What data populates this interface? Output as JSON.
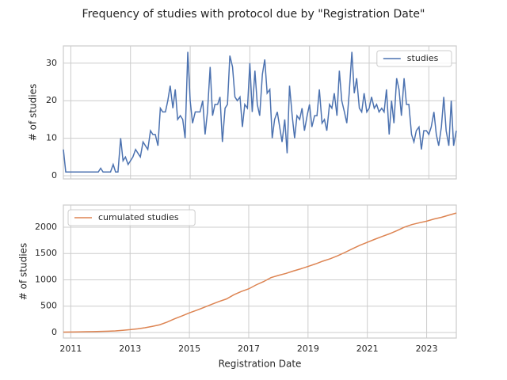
{
  "title": "Frequency of studies with protocol due by \"Registration Date\"",
  "chart_data": [
    {
      "type": "line",
      "ylabel": "# of studies",
      "grid": true,
      "legend": "upper right",
      "xlim": [
        2010.75,
        2023.92
      ],
      "ylim": [
        -0.85,
        34.6
      ],
      "yticks": [
        0,
        10,
        20,
        30
      ],
      "x": [
        2010.75,
        2010.83,
        2010.92,
        2011,
        2011.08,
        2011.17,
        2011.25,
        2011.33,
        2011.42,
        2011.5,
        2011.58,
        2011.67,
        2011.75,
        2011.83,
        2011.92,
        2012,
        2012.08,
        2012.17,
        2012.25,
        2012.33,
        2012.42,
        2012.5,
        2012.58,
        2012.67,
        2012.75,
        2012.83,
        2012.92,
        2013,
        2013.08,
        2013.17,
        2013.25,
        2013.33,
        2013.42,
        2013.5,
        2013.58,
        2013.67,
        2013.75,
        2013.83,
        2013.92,
        2014,
        2014.08,
        2014.17,
        2014.25,
        2014.33,
        2014.42,
        2014.5,
        2014.58,
        2014.67,
        2014.75,
        2014.83,
        2014.92,
        2015,
        2015.08,
        2015.17,
        2015.25,
        2015.33,
        2015.42,
        2015.5,
        2015.58,
        2015.67,
        2015.75,
        2015.83,
        2015.92,
        2016,
        2016.08,
        2016.17,
        2016.25,
        2016.33,
        2016.42,
        2016.5,
        2016.58,
        2016.67,
        2016.75,
        2016.83,
        2016.92,
        2017,
        2017.08,
        2017.17,
        2017.25,
        2017.33,
        2017.42,
        2017.5,
        2017.58,
        2017.67,
        2017.75,
        2017.83,
        2017.92,
        2018,
        2018.08,
        2018.17,
        2018.25,
        2018.33,
        2018.42,
        2018.5,
        2018.58,
        2018.67,
        2018.75,
        2018.83,
        2018.92,
        2019,
        2019.08,
        2019.17,
        2019.25,
        2019.33,
        2019.42,
        2019.5,
        2019.58,
        2019.67,
        2019.75,
        2019.83,
        2019.92,
        2020,
        2020.08,
        2020.17,
        2020.25,
        2020.33,
        2020.42,
        2020.5,
        2020.58,
        2020.67,
        2020.75,
        2020.83,
        2020.92,
        2021,
        2021.08,
        2021.17,
        2021.25,
        2021.33,
        2021.42,
        2021.5,
        2021.58,
        2021.67,
        2021.75,
        2021.83,
        2021.92,
        2022,
        2022.08,
        2022.17,
        2022.25,
        2022.33,
        2022.42,
        2022.5,
        2022.58,
        2022.67,
        2022.75,
        2022.83,
        2022.92,
        2023,
        2023.08,
        2023.17,
        2023.25,
        2023.33,
        2023.42,
        2023.5,
        2023.58,
        2023.67,
        2023.75,
        2023.83,
        2023.92
      ],
      "series": [
        {
          "name": "studies",
          "color": "#4c72b0",
          "values": [
            7,
            1,
            1,
            1,
            1,
            1,
            1,
            1,
            1,
            1,
            1,
            1,
            1,
            1,
            1,
            2,
            1,
            1,
            1,
            1,
            3,
            1,
            1,
            10,
            4,
            5,
            3,
            4,
            5,
            7,
            6,
            5,
            9,
            8,
            7,
            12,
            11,
            11,
            8,
            18,
            17,
            17,
            20,
            24,
            18,
            23,
            15,
            16,
            15,
            10,
            33,
            20,
            14,
            17,
            17,
            17,
            20,
            11,
            17,
            29,
            16,
            19,
            19,
            21,
            9,
            18,
            19,
            32,
            29,
            21,
            20,
            21,
            13,
            19,
            18,
            30,
            17,
            28,
            19,
            16,
            27,
            31,
            22,
            23,
            10,
            15,
            17,
            13,
            9,
            15,
            6,
            24,
            16,
            10,
            16,
            15,
            18,
            12,
            16,
            19,
            13,
            16,
            16,
            23,
            14,
            15,
            12,
            19,
            18,
            22,
            16,
            28,
            20,
            17,
            14,
            22,
            33,
            22,
            26,
            18,
            17,
            22,
            17,
            18,
            21,
            18,
            19,
            17,
            18,
            17,
            23,
            11,
            20,
            14,
            26,
            23,
            16,
            26,
            19,
            19,
            11,
            9,
            12,
            13,
            7,
            12,
            12,
            11,
            13,
            17,
            11,
            8,
            13,
            21,
            12,
            8,
            20,
            8,
            12
          ]
        }
      ]
    },
    {
      "type": "line",
      "ylabel": "# of studies",
      "xlabel": "Registration Date",
      "grid": true,
      "legend": "upper left",
      "xlim": [
        2010.75,
        2024
      ],
      "ylim": [
        -105,
        2420
      ],
      "yticks": [
        0,
        500,
        1000,
        1500,
        2000
      ],
      "xticks": [
        2011,
        2013,
        2015,
        2017,
        2019,
        2021,
        2023
      ],
      "x": [
        2010.75,
        2011,
        2011.25,
        2011.5,
        2011.75,
        2012,
        2012.25,
        2012.5,
        2012.75,
        2013,
        2013.25,
        2013.5,
        2013.75,
        2014,
        2014.25,
        2014.5,
        2014.75,
        2015,
        2015.25,
        2015.5,
        2015.75,
        2016,
        2016.25,
        2016.5,
        2016.75,
        2017,
        2017.25,
        2017.5,
        2017.75,
        2018,
        2018.25,
        2018.5,
        2018.75,
        2019,
        2019.25,
        2019.5,
        2019.75,
        2020,
        2020.25,
        2020.5,
        2020.75,
        2021,
        2021.25,
        2021.5,
        2021.75,
        2022,
        2022.25,
        2022.5,
        2022.75,
        2023,
        2023.25,
        2023.5,
        2023.75,
        2024
      ],
      "series": [
        {
          "name": "cumulated studies",
          "color": "#dd8452",
          "values": [
            7,
            9,
            12,
            15,
            18,
            21,
            25,
            30,
            42,
            54,
            70,
            90,
            117,
            147,
            199,
            261,
            315,
            373,
            424,
            478,
            535,
            589,
            637,
            717,
            779,
            829,
            904,
            966,
            1042,
            1084,
            1121,
            1167,
            1208,
            1254,
            1302,
            1355,
            1401,
            1457,
            1522,
            1591,
            1657,
            1713,
            1770,
            1824,
            1875,
            1935,
            2000,
            2049,
            2083,
            2114,
            2155,
            2187,
            2228,
            2268
          ]
        }
      ]
    }
  ]
}
